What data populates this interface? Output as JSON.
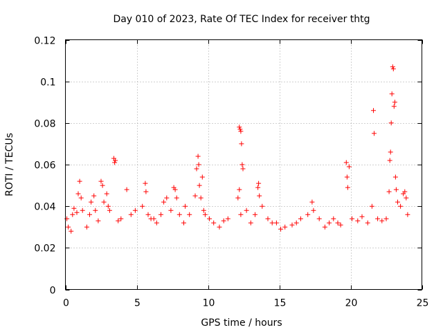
{
  "chart_data": {
    "type": "scatter",
    "title": "Day 010 of 2023, Rate Of TEC Index for receiver thtg",
    "xlabel": "GPS time / hours",
    "ylabel": "ROTI / TECUs",
    "xlim": [
      0,
      25
    ],
    "ylim": [
      0,
      0.12
    ],
    "xticks": [
      "0",
      "5",
      "10",
      "15",
      "20",
      "25"
    ],
    "yticks": [
      "0",
      "0.02",
      "0.04",
      "0.06",
      "0.08",
      "0.1",
      "0.12"
    ],
    "grid": true,
    "marker": "+",
    "series": [
      {
        "color": "#ff0000",
        "points": [
          [
            0.1,
            0.034
          ],
          [
            0.2,
            0.03
          ],
          [
            0.4,
            0.028
          ],
          [
            0.5,
            0.036
          ],
          [
            0.6,
            0.039
          ],
          [
            0.8,
            0.037
          ],
          [
            0.9,
            0.046
          ],
          [
            1.0,
            0.052
          ],
          [
            1.1,
            0.044
          ],
          [
            1.2,
            0.038
          ],
          [
            1.5,
            0.03
          ],
          [
            1.7,
            0.036
          ],
          [
            1.8,
            0.042
          ],
          [
            2.0,
            0.045
          ],
          [
            2.1,
            0.038
          ],
          [
            2.3,
            0.033
          ],
          [
            2.5,
            0.052
          ],
          [
            2.6,
            0.05
          ],
          [
            2.7,
            0.042
          ],
          [
            2.9,
            0.046
          ],
          [
            3.0,
            0.04
          ],
          [
            3.1,
            0.038
          ],
          [
            3.4,
            0.063
          ],
          [
            3.45,
            0.061
          ],
          [
            3.5,
            0.062
          ],
          [
            3.7,
            0.033
          ],
          [
            3.9,
            0.034
          ],
          [
            4.3,
            0.048
          ],
          [
            4.6,
            0.036
          ],
          [
            4.9,
            0.038
          ],
          [
            5.4,
            0.04
          ],
          [
            5.6,
            0.051
          ],
          [
            5.65,
            0.047
          ],
          [
            5.8,
            0.036
          ],
          [
            6.0,
            0.034
          ],
          [
            6.2,
            0.034
          ],
          [
            6.4,
            0.032
          ],
          [
            6.7,
            0.036
          ],
          [
            6.9,
            0.042
          ],
          [
            7.1,
            0.044
          ],
          [
            7.4,
            0.038
          ],
          [
            7.6,
            0.049
          ],
          [
            7.7,
            0.048
          ],
          [
            7.8,
            0.044
          ],
          [
            8.0,
            0.036
          ],
          [
            8.3,
            0.032
          ],
          [
            8.4,
            0.04
          ],
          [
            8.7,
            0.036
          ],
          [
            9.1,
            0.045
          ],
          [
            9.2,
            0.058
          ],
          [
            9.3,
            0.064
          ],
          [
            9.35,
            0.06
          ],
          [
            9.4,
            0.05
          ],
          [
            9.5,
            0.044
          ],
          [
            9.6,
            0.054
          ],
          [
            9.7,
            0.038
          ],
          [
            9.8,
            0.036
          ],
          [
            10.1,
            0.034
          ],
          [
            10.4,
            0.032
          ],
          [
            10.8,
            0.03
          ],
          [
            11.1,
            0.033
          ],
          [
            11.4,
            0.034
          ],
          [
            12.1,
            0.044
          ],
          [
            12.2,
            0.078
          ],
          [
            12.25,
            0.077
          ],
          [
            12.3,
            0.076
          ],
          [
            12.35,
            0.07
          ],
          [
            12.4,
            0.06
          ],
          [
            12.45,
            0.058
          ],
          [
            12.2,
            0.048
          ],
          [
            12.3,
            0.036
          ],
          [
            12.7,
            0.038
          ],
          [
            13.0,
            0.032
          ],
          [
            13.3,
            0.036
          ],
          [
            13.5,
            0.049
          ],
          [
            13.55,
            0.051
          ],
          [
            13.6,
            0.045
          ],
          [
            13.8,
            0.04
          ],
          [
            14.2,
            0.034
          ],
          [
            14.5,
            0.032
          ],
          [
            14.8,
            0.032
          ],
          [
            15.1,
            0.029
          ],
          [
            15.4,
            0.03
          ],
          [
            15.9,
            0.031
          ],
          [
            16.2,
            0.032
          ],
          [
            16.5,
            0.034
          ],
          [
            17.0,
            0.036
          ],
          [
            17.3,
            0.042
          ],
          [
            17.4,
            0.038
          ],
          [
            17.8,
            0.034
          ],
          [
            18.2,
            0.03
          ],
          [
            18.5,
            0.032
          ],
          [
            18.8,
            0.034
          ],
          [
            19.1,
            0.032
          ],
          [
            19.3,
            0.031
          ],
          [
            19.7,
            0.061
          ],
          [
            19.75,
            0.054
          ],
          [
            19.8,
            0.049
          ],
          [
            19.9,
            0.059
          ],
          [
            20.1,
            0.034
          ],
          [
            20.5,
            0.033
          ],
          [
            20.8,
            0.035
          ],
          [
            21.2,
            0.032
          ],
          [
            21.5,
            0.04
          ],
          [
            21.6,
            0.086
          ],
          [
            21.65,
            0.075
          ],
          [
            21.9,
            0.034
          ],
          [
            22.2,
            0.033
          ],
          [
            22.5,
            0.034
          ],
          [
            22.7,
            0.047
          ],
          [
            22.75,
            0.062
          ],
          [
            22.8,
            0.066
          ],
          [
            22.85,
            0.08
          ],
          [
            22.9,
            0.094
          ],
          [
            22.95,
            0.107
          ],
          [
            23.0,
            0.106
          ],
          [
            23.05,
            0.088
          ],
          [
            23.1,
            0.09
          ],
          [
            23.15,
            0.054
          ],
          [
            23.2,
            0.048
          ],
          [
            23.3,
            0.042
          ],
          [
            23.5,
            0.04
          ],
          [
            23.7,
            0.046
          ],
          [
            23.8,
            0.047
          ],
          [
            23.9,
            0.044
          ],
          [
            24.0,
            0.036
          ]
        ]
      }
    ]
  }
}
